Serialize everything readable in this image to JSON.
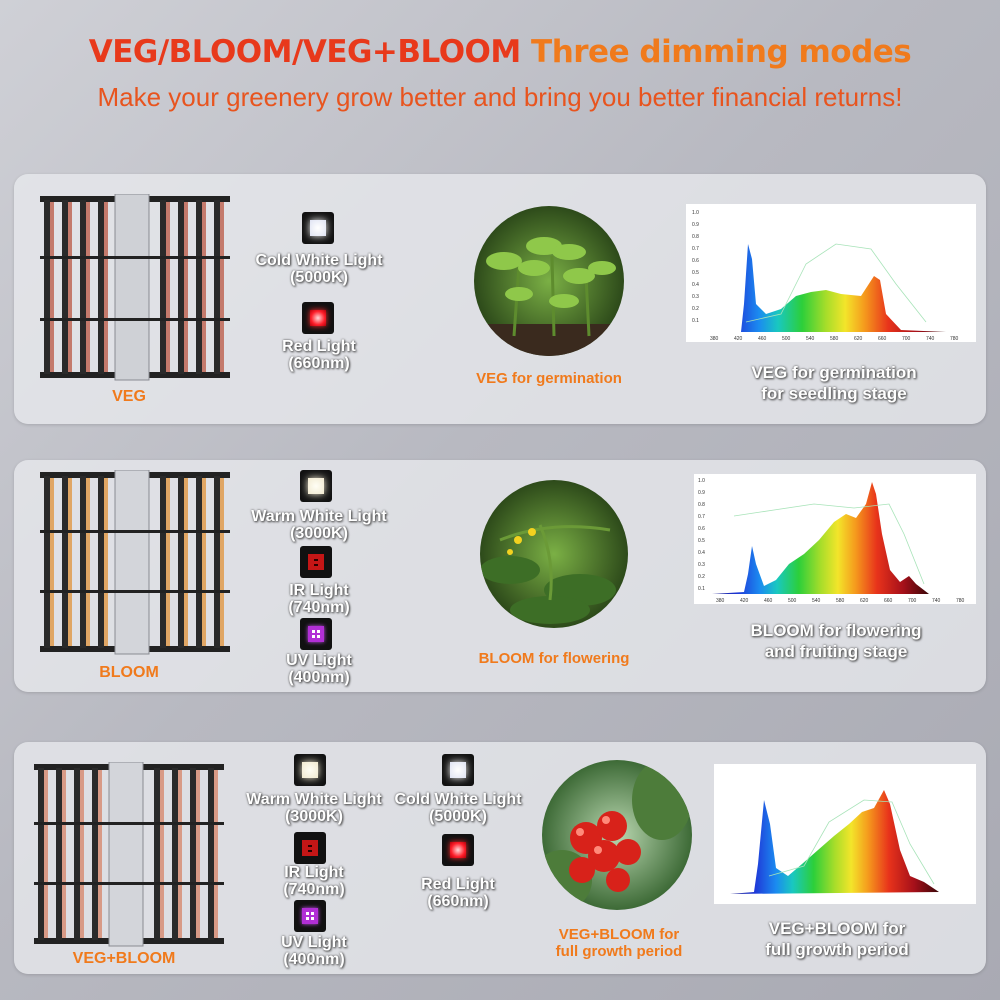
{
  "header": {
    "title_modes": "VEG/BLOOM/VEG+BLOOM",
    "title_rest": " Three dimming modes",
    "subtitle": "Make your greenery grow better and bring you better financial returns!"
  },
  "colors": {
    "accent_red": "#e8391b",
    "accent_orange": "#f07a1c"
  },
  "panels": [
    {
      "mode": "VEG",
      "lights": [
        {
          "icon": "cold-white-led-icon",
          "name": "Cold White Light",
          "spec": "(5000K)"
        },
        {
          "icon": "red-led-icon",
          "name": "Red Light",
          "spec": "(660nm)"
        }
      ],
      "photo_caption": "VEG for germination",
      "spectrum_caption_1": "VEG for germination",
      "spectrum_caption_2": "for seedling stage",
      "x_ticks": [
        "380",
        "420",
        "460",
        "500",
        "540",
        "580",
        "620",
        "660",
        "700",
        "740",
        "780"
      ],
      "y_ticks": [
        "1.0",
        "0.9",
        "0.8",
        "0.7",
        "0.6",
        "0.5",
        "0.4",
        "0.3",
        "0.2",
        "0.1"
      ]
    },
    {
      "mode": "BLOOM",
      "lights": [
        {
          "icon": "warm-white-led-icon",
          "name": "Warm White Light",
          "spec": "(3000K)"
        },
        {
          "icon": "ir-led-icon",
          "name": "IR Light",
          "spec": "(740nm)"
        },
        {
          "icon": "uv-led-icon",
          "name": "UV Light",
          "spec": "(400nm)"
        }
      ],
      "photo_caption": "BLOOM for flowering",
      "spectrum_caption_1": "BLOOM for flowering",
      "spectrum_caption_2": "and fruiting stage",
      "x_ticks": [
        "380",
        "420",
        "460",
        "500",
        "540",
        "580",
        "620",
        "660",
        "700",
        "740",
        "780"
      ],
      "y_ticks": [
        "1.0",
        "0.9",
        "0.8",
        "0.7",
        "0.6",
        "0.5",
        "0.4",
        "0.3",
        "0.2",
        "0.1"
      ]
    },
    {
      "mode": "VEG+BLOOM",
      "lights": [
        {
          "icon": "warm-white-led-icon",
          "name": "Warm White Light",
          "spec": "(3000K)"
        },
        {
          "icon": "ir-led-icon",
          "name": "IR Light",
          "spec": "(740nm)"
        },
        {
          "icon": "uv-led-icon",
          "name": "UV Light",
          "spec": "(400nm)"
        },
        {
          "icon": "cold-white-led-icon",
          "name": "Cold White Light",
          "spec": "(5000K)"
        },
        {
          "icon": "red-led-icon",
          "name": "Red Light",
          "spec": "(660nm)"
        }
      ],
      "photo_caption_1": "VEG+BLOOM  for",
      "photo_caption_2": "full growth period",
      "spectrum_caption_1": "VEG+BLOOM  for",
      "spectrum_caption_2": "full growth period"
    }
  ]
}
